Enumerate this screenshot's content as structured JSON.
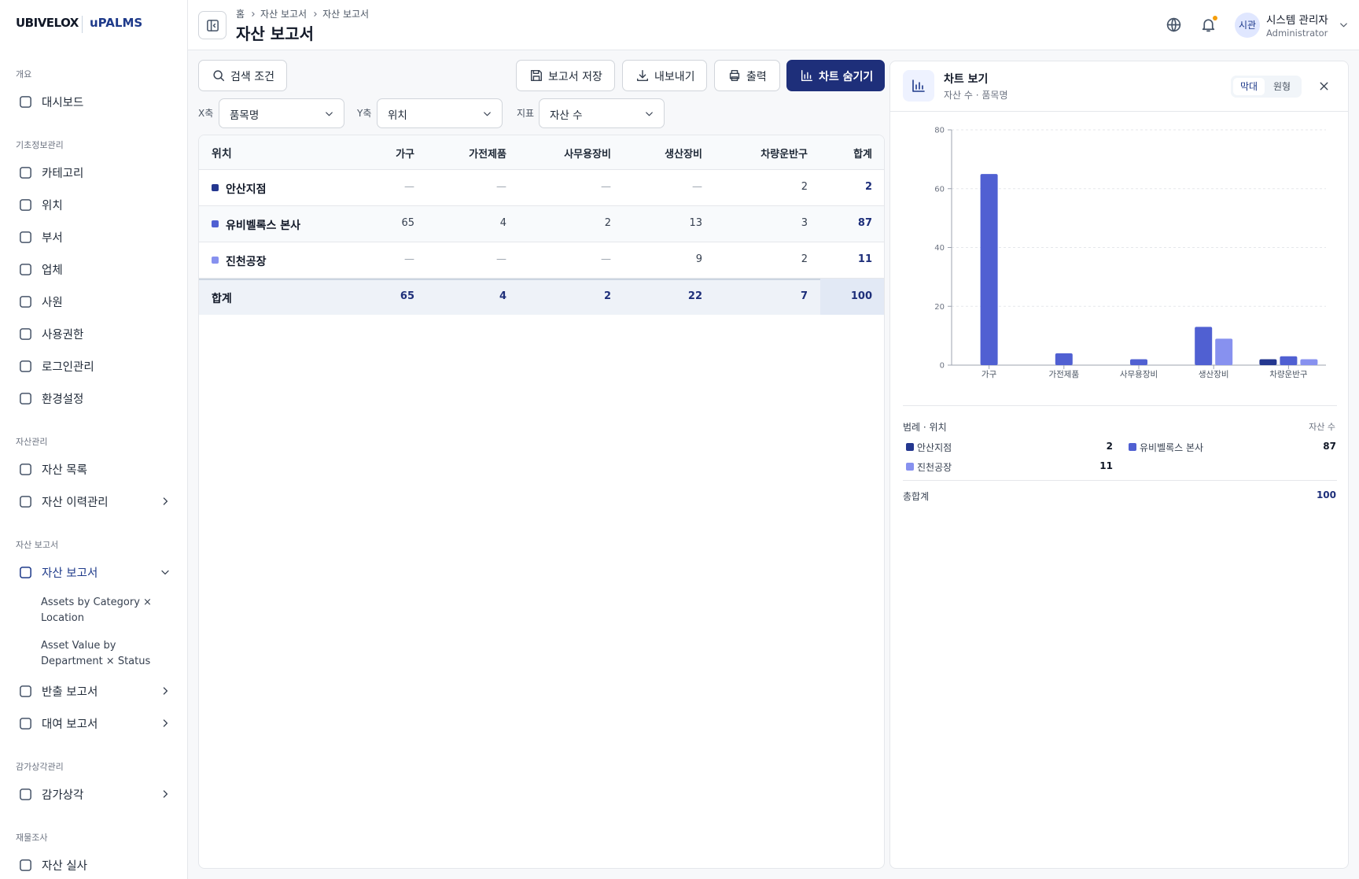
{
  "brand": {
    "logo1": "UBIVELOX",
    "logo2": "uPALMS"
  },
  "sidebar": {
    "sections": [
      {
        "title": "개요",
        "items": [
          {
            "label": "대시보드"
          }
        ]
      },
      {
        "title": "기초정보관리",
        "items": [
          {
            "label": "카테고리"
          },
          {
            "label": "위치"
          },
          {
            "label": "부서"
          },
          {
            "label": "업체"
          },
          {
            "label": "사원"
          },
          {
            "label": "사용권한"
          },
          {
            "label": "로그인관리"
          },
          {
            "label": "환경설정"
          }
        ]
      },
      {
        "title": "자산관리",
        "items": [
          {
            "label": "자산 목록"
          },
          {
            "label": "자산 이력관리",
            "chevron": "right"
          }
        ]
      },
      {
        "title": "자산 보고서",
        "items": [
          {
            "label": "자산 보고서",
            "chevron": "down",
            "sub": [
              "Assets by Category × Location",
              "Asset Value by Department × Status"
            ]
          },
          {
            "label": "반출 보고서",
            "chevron": "right"
          },
          {
            "label": "대여 보고서",
            "chevron": "right"
          }
        ]
      },
      {
        "title": "감가상각관리",
        "items": [
          {
            "label": "감가상각",
            "chevron": "right"
          }
        ]
      },
      {
        "title": "재물조사",
        "items": [
          {
            "label": "자산 실사"
          }
        ]
      }
    ]
  },
  "header": {
    "breadcrumb": [
      "홈",
      "자산 보고서",
      "자산 보고서"
    ],
    "title": "자산 보고서",
    "user": {
      "avatar": "시관",
      "name": "시스템 관리자",
      "role": "Administrator"
    }
  },
  "toolbar": {
    "search": "검색 조건",
    "buttons": [
      "보고서 저장",
      "내보내기",
      "출력",
      "차트 숨기기"
    ]
  },
  "filters": [
    {
      "label": "X축",
      "value": "품목명"
    },
    {
      "label": "Y축",
      "value": "위치"
    },
    {
      "label": "지표",
      "value": "자산 수"
    }
  ],
  "table": {
    "columns": [
      "위치",
      "가구",
      "가전제품",
      "사무용장비",
      "생산장비",
      "차량운반구",
      "합계"
    ],
    "rows": [
      [
        "안산지점",
        "—",
        "—",
        "—",
        "—",
        2,
        2
      ],
      [
        "유비벨록스 본사",
        65,
        4,
        2,
        13,
        3,
        87
      ],
      [
        "진천공장",
        "—",
        "—",
        "—",
        9,
        2,
        11
      ]
    ],
    "footer": [
      "합계",
      65,
      4,
      2,
      22,
      7,
      100
    ]
  },
  "chart_panel": {
    "title": "차트 보기",
    "subtitle": "자산 수 · 품목명",
    "tabs": [
      "막대",
      "원형"
    ]
  },
  "chart_data": {
    "type": "bar",
    "categories": [
      "가구",
      "가전제품",
      "사무용장비",
      "생산장비",
      "차량운반구"
    ],
    "series": [
      {
        "name": "안산지점",
        "color": "#24378f",
        "values": [
          null,
          null,
          null,
          null,
          2
        ]
      },
      {
        "name": "유비벨록스 본사",
        "color": "#5060d2",
        "values": [
          65,
          4,
          2,
          13,
          3
        ]
      },
      {
        "name": "진천공장",
        "color": "#8791ef",
        "values": [
          null,
          null,
          null,
          9,
          2
        ]
      }
    ],
    "ylim": [
      0,
      80
    ],
    "yticks": [
      0,
      20,
      40,
      60,
      80
    ],
    "grid": true
  },
  "legend": {
    "title": "범례 · 위치",
    "metric": "자산 수",
    "totals": [
      2,
      87,
      11
    ],
    "total_label": "총합계",
    "total": 100
  }
}
